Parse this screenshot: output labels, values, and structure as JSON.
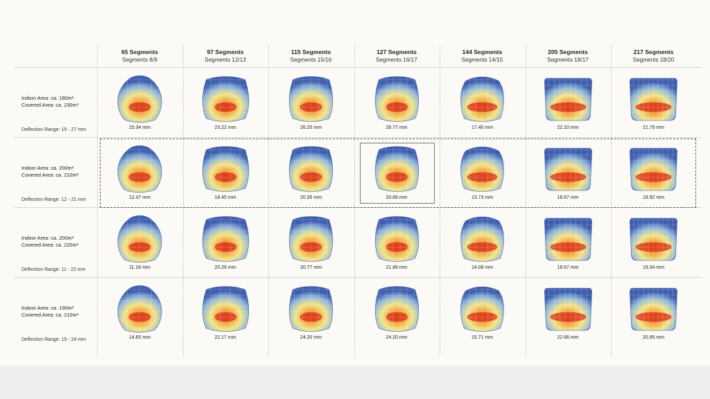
{
  "columns": [
    {
      "segments": "65 Segments",
      "sub": "Segments 8/9"
    },
    {
      "segments": "97 Segments",
      "sub": "Segments 12/13"
    },
    {
      "segments": "115 Segments",
      "sub": "Segments 15/16"
    },
    {
      "segments": "127 Segments",
      "sub": "Segments 16/17"
    },
    {
      "segments": "144 Segments",
      "sub": "Segments 14/15"
    },
    {
      "segments": "205 Segments",
      "sub": "Segments 18/17"
    },
    {
      "segments": "217 Segments",
      "sub": "Segments 18/20"
    }
  ],
  "rows": [
    {
      "indoor": "Indoor Area: ca. 180m²",
      "covered": "Covered Area: ca. 230m²",
      "deflection": "Deflection Range: 15 - 27 mm",
      "values": [
        "15.34 mm",
        "23.22 mm",
        "26.20 mm",
        "26.77 mm",
        "17.40 mm",
        "22.10 mm",
        "21.79 mm"
      ]
    },
    {
      "indoor": "Indoor Area: ca. 200m²",
      "covered": "Covered Area: ca. 210m²",
      "deflection": "Deflection Range: 12 - 21 mm",
      "values": [
        "12.47 mm",
        "18.45 mm",
        "20.35 mm",
        "20.89 mm",
        "13.73 mm",
        "18.67 mm",
        "18.92 mm"
      ]
    },
    {
      "indoor": "Indoor Area: ca. 200m²",
      "covered": "Covered Area: ca. 220m²",
      "deflection": "Deflection Range: 11 - 22 mm",
      "values": [
        "11.18 mm",
        "20.29 mm",
        "20.77 mm",
        "21.88 mm",
        "14.08 mm",
        "18.67 mm",
        "19.34 mm"
      ]
    },
    {
      "indoor": "Indoor Area: ca. 190m²",
      "covered": "Covered Area: ca. 210m²",
      "deflection": "Deflection Range: 15 - 24 mm",
      "values": [
        "14.65 mm",
        "22.17 mm",
        "24.20 mm",
        "24.20 mm",
        "15.71 mm",
        "22.66 mm",
        "20.95 mm"
      ]
    }
  ],
  "highlight": {
    "dashed_row": 2,
    "selected_cell": {
      "row": 2,
      "column": 4
    }
  },
  "colors": {
    "heatmap_low": "#3f5fae",
    "heatmap_mid_low": "#8fb6dc",
    "heatmap_mid": "#f1e58a",
    "heatmap_high": "#f3a03c",
    "heatmap_max": "#dc3b1c"
  }
}
